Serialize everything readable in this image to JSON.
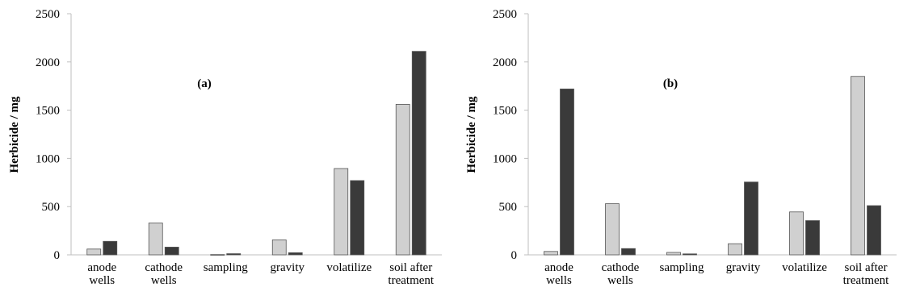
{
  "chart_data": [
    {
      "type": "bar",
      "panel_label": "(a)",
      "ylabel": "Herbicide / mg",
      "xlabel": "",
      "ylim": [
        0,
        2500
      ],
      "yticks": [
        "0",
        "500",
        "1000",
        "1500",
        "2000",
        "2500"
      ],
      "categories": [
        [
          "anode",
          "wells"
        ],
        [
          "cathode",
          "wells"
        ],
        [
          "sampling"
        ],
        [
          "gravity"
        ],
        [
          "volatilize"
        ],
        [
          "soil after",
          "treatment"
        ]
      ],
      "series": [
        {
          "color": "#d0d0d0",
          "values": [
            60,
            330,
            3,
            155,
            895,
            1560
          ]
        },
        {
          "color": "#3a3a3a",
          "values": [
            140,
            80,
            12,
            22,
            770,
            2110
          ]
        }
      ],
      "grid": false,
      "legend": "none"
    },
    {
      "type": "bar",
      "panel_label": "(b)",
      "ylabel": "Herbicide / mg",
      "xlabel": "",
      "ylim": [
        0,
        2500
      ],
      "yticks": [
        "0",
        "500",
        "1000",
        "1500",
        "2000",
        "2500"
      ],
      "categories": [
        [
          "anode",
          "wells"
        ],
        [
          "cathode",
          "wells"
        ],
        [
          "sampling"
        ],
        [
          "gravity"
        ],
        [
          "volatilize"
        ],
        [
          "soil after",
          "treatment"
        ]
      ],
      "series": [
        {
          "color": "#d0d0d0",
          "values": [
            35,
            530,
            25,
            115,
            445,
            1850
          ]
        },
        {
          "color": "#3a3a3a",
          "values": [
            1720,
            65,
            10,
            755,
            355,
            510
          ]
        }
      ],
      "grid": false,
      "legend": "none"
    }
  ]
}
